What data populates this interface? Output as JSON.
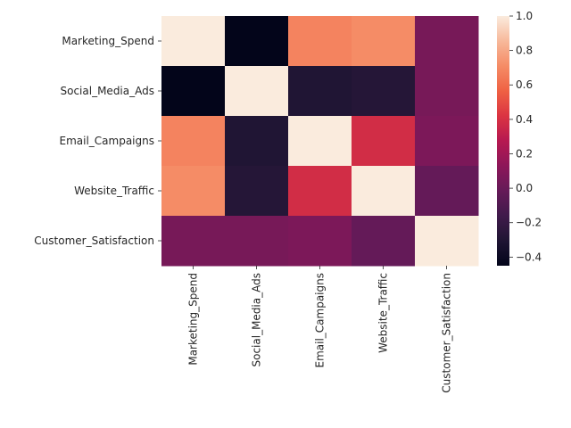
{
  "chart_data": {
    "type": "heatmap",
    "title": "",
    "xlabel": "",
    "ylabel": "",
    "rows": [
      "Marketing_Spend",
      "Social_Media_Ads",
      "Email_Campaigns",
      "Website_Traffic",
      "Customer_Satisfaction"
    ],
    "columns": [
      "Marketing_Spend",
      "Social_Media_Ads",
      "Email_Campaigns",
      "Website_Traffic",
      "Customer_Satisfaction"
    ],
    "values": [
      [
        1.0,
        -0.45,
        0.68,
        0.71,
        0.05
      ],
      [
        -0.45,
        1.0,
        -0.3,
        -0.28,
        0.05
      ],
      [
        0.68,
        -0.3,
        1.0,
        0.38,
        0.07
      ],
      [
        0.71,
        -0.28,
        0.38,
        1.0,
        -0.02
      ],
      [
        0.05,
        0.05,
        0.07,
        -0.02,
        1.0
      ]
    ],
    "colormap": "rocket",
    "colorbar": {
      "vmin": -0.45,
      "vmax": 1.0,
      "ticks": [
        "1.0",
        "0.8",
        "0.6",
        "0.4",
        "0.2",
        "0.0",
        "−0.2",
        "−0.4"
      ],
      "tick_values": [
        1.0,
        0.8,
        0.6,
        0.4,
        0.2,
        0.0,
        -0.2,
        -0.4
      ]
    }
  }
}
